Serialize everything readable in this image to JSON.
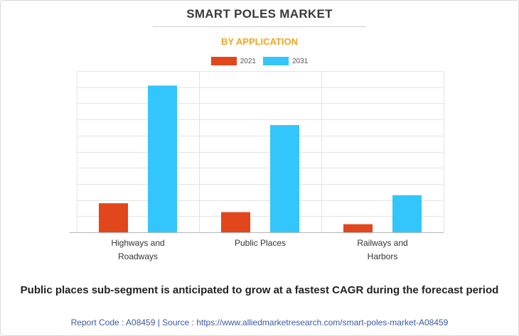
{
  "title": "SMART POLES MARKET",
  "subtitle": "BY APPLICATION",
  "colors": {
    "s2021": "#e2461b",
    "s2031": "#33c6fc",
    "grid": "#e3e3e3",
    "axis": "#b5b5b5"
  },
  "chart_data": {
    "type": "bar",
    "categories": [
      "Highways and Roadways",
      "Public Places",
      "Railways and Harbors"
    ],
    "category_lines": [
      [
        "Highways and",
        "Roadways"
      ],
      [
        "Public Places"
      ],
      [
        "Railways and",
        "Harbors"
      ]
    ],
    "series": [
      {
        "name": "2021",
        "values": [
          1.8,
          1.25,
          0.5
        ]
      },
      {
        "name": "2031",
        "values": [
          9.1,
          6.65,
          2.3
        ]
      }
    ],
    "ylim": [
      0,
      10
    ],
    "grid_step": 1,
    "legend": "top-center",
    "xlabel": "",
    "ylabel": ""
  },
  "caption": "Public places sub-segment is anticipated to grow at a fastest CAGR during the forecast period",
  "footer": "Report Code : A08459  |  Source : https://www.alliedmarketresearch.com/smart-poles-market-A08459"
}
